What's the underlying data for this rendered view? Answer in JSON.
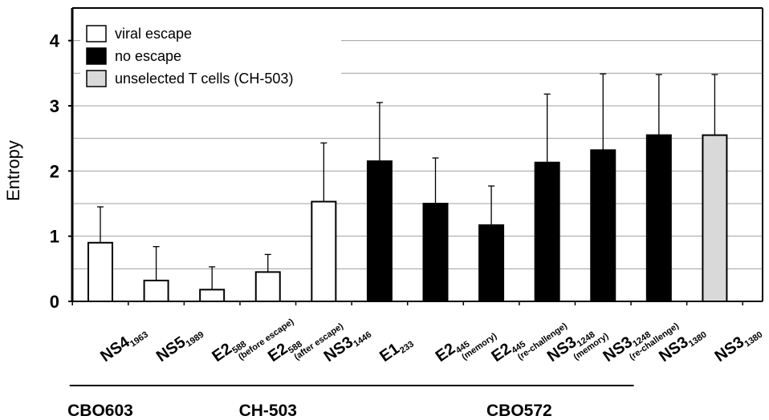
{
  "chart_data": {
    "type": "bar",
    "ylabel": "Entropy",
    "xlabel": "",
    "ylim": [
      0,
      4.5
    ],
    "yticks": [
      0,
      1,
      2,
      3,
      4
    ],
    "grid": true,
    "legend": {
      "placement": "top-left",
      "entries": [
        {
          "label": "viral escape",
          "color": "#ffffff"
        },
        {
          "label": "no escape",
          "color": "#000000"
        },
        {
          "label": "unselected T cells (CH-503)",
          "color": "#d9d9d9"
        }
      ]
    },
    "categories": [
      {
        "main": "NS4",
        "sub": "1963",
        "note": "",
        "value": 0.9,
        "error": 0.55,
        "group": "viral escape"
      },
      {
        "main": "NS5",
        "sub": "1989",
        "note": "",
        "value": 0.32,
        "error": 0.52,
        "group": "viral escape"
      },
      {
        "main": "E2",
        "sub": "588",
        "note": "(before escape)",
        "value": 0.18,
        "error": 0.35,
        "group": "viral escape"
      },
      {
        "main": "E2",
        "sub": "588",
        "note": "(after escape)",
        "value": 0.45,
        "error": 0.27,
        "group": "viral escape"
      },
      {
        "main": "NS3",
        "sub": "1446",
        "note": "",
        "value": 1.53,
        "error": 0.9,
        "group": "viral escape"
      },
      {
        "main": "E1",
        "sub": "233",
        "note": "",
        "value": 2.15,
        "error": 0.9,
        "group": "no escape"
      },
      {
        "main": "E2",
        "sub": "445",
        "note": "(memory)",
        "value": 1.5,
        "error": 0.7,
        "group": "no escape"
      },
      {
        "main": "E2",
        "sub": "445",
        "note": "(re-challenge)",
        "value": 1.17,
        "error": 0.6,
        "group": "no escape"
      },
      {
        "main": "NS3",
        "sub": "1248",
        "note": "(memory)",
        "value": 2.13,
        "error": 1.05,
        "group": "no escape"
      },
      {
        "main": "NS3",
        "sub": "1248",
        "note": "(re-challenge)",
        "value": 2.32,
        "error": 1.17,
        "group": "no escape"
      },
      {
        "main": "NS3",
        "sub": "1380",
        "note": "",
        "value": 2.55,
        "error": 0.93,
        "group": "no escape"
      },
      {
        "main": "NS3",
        "sub": "1380",
        "note": "",
        "value": 2.55,
        "error": 0.93,
        "group": "unselected T cells (CH-503)"
      }
    ],
    "groups": [
      {
        "label": "CBO603",
        "from": 0,
        "to": 0
      },
      {
        "label": "CH-503",
        "from": 1,
        "to": 5
      },
      {
        "label": "CBO572",
        "from": 6,
        "to": 9
      }
    ]
  }
}
